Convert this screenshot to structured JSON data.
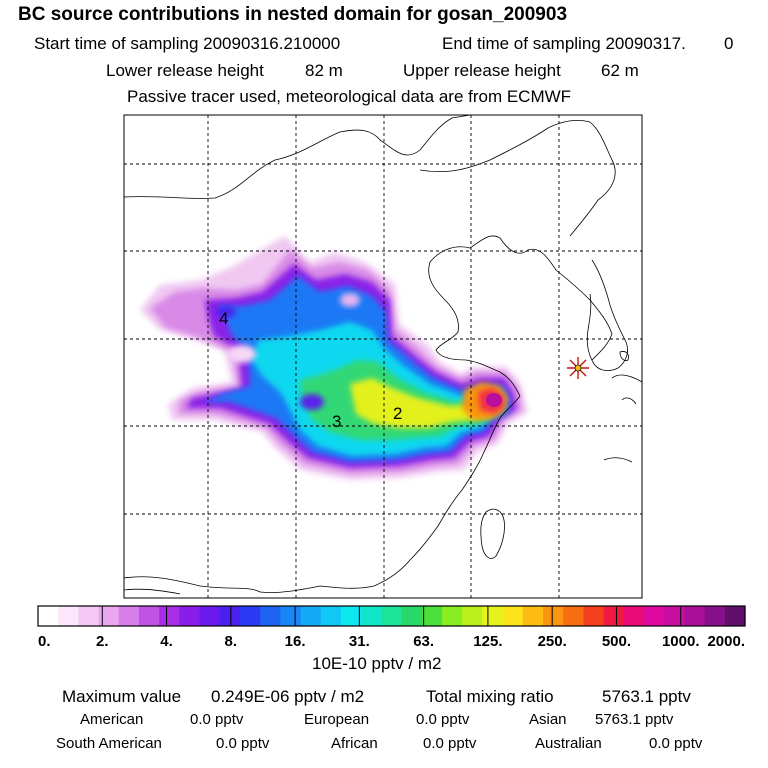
{
  "header": {
    "title": "BC  source contributions in nested domain for gosan_200903",
    "start_label": "Start time of sampling 20090316.210000",
    "end_label": "End time of sampling 20090317.",
    "end_suffix": "0",
    "lower_label": "Lower release height",
    "lower_value": "82 m",
    "upper_label": "Upper release height",
    "upper_value": "62 m",
    "note": "Passive tracer used, meteorological data are from ECMWF"
  },
  "chart_data": {
    "type": "heatmap",
    "description_units": "10E-10 pptv / m2",
    "region_labels": [
      "4",
      "3",
      "2"
    ],
    "receptor": "gosan",
    "colorbar": {
      "ticks": [
        "0.",
        "2.",
        "4.",
        "8.",
        "16.",
        "31.",
        "63.",
        "125.",
        "250.",
        "500.",
        "1000.",
        "2000."
      ],
      "unit_label": "10E-10 pptv / m2",
      "colors": [
        "#ffffff",
        "#fbe6fb",
        "#f4c8f4",
        "#eaa6ee",
        "#d77ee9",
        "#c251e6",
        "#a72ee6",
        "#8a1ee8",
        "#6a1aec",
        "#4b1ff0",
        "#2b3af2",
        "#1e62f4",
        "#1a86f6",
        "#14a8f7",
        "#10c8f6",
        "#0ee6f0",
        "#12e6c8",
        "#1ce29a",
        "#2ad86a",
        "#4ce03c",
        "#88ee22",
        "#b9f01c",
        "#e6f21c",
        "#fce41c",
        "#fcbc14",
        "#fb9410",
        "#f86e10",
        "#f4401e",
        "#f01a40",
        "#ea0a78",
        "#de0aa0",
        "#c80ea0",
        "#a8109a",
        "#86108a",
        "#60106c"
      ]
    },
    "grid": true
  },
  "footer": {
    "max_label": "Maximum value",
    "max_value": "0.249E-06 pptv / m2",
    "total_label": "Total mixing ratio",
    "total_value": "5763.1 pptv",
    "american_label": "American",
    "american_value": "0.0 pptv",
    "european_label": "European",
    "european_value": "0.0 pptv",
    "asian_label": "Asian",
    "asian_value": "5763.1 pptv",
    "south_american_label": "South American",
    "south_american_value": "0.0 pptv",
    "african_label": "African",
    "african_value": "0.0 pptv",
    "australian_label": "Australian",
    "australian_value": "0.0 pptv"
  }
}
